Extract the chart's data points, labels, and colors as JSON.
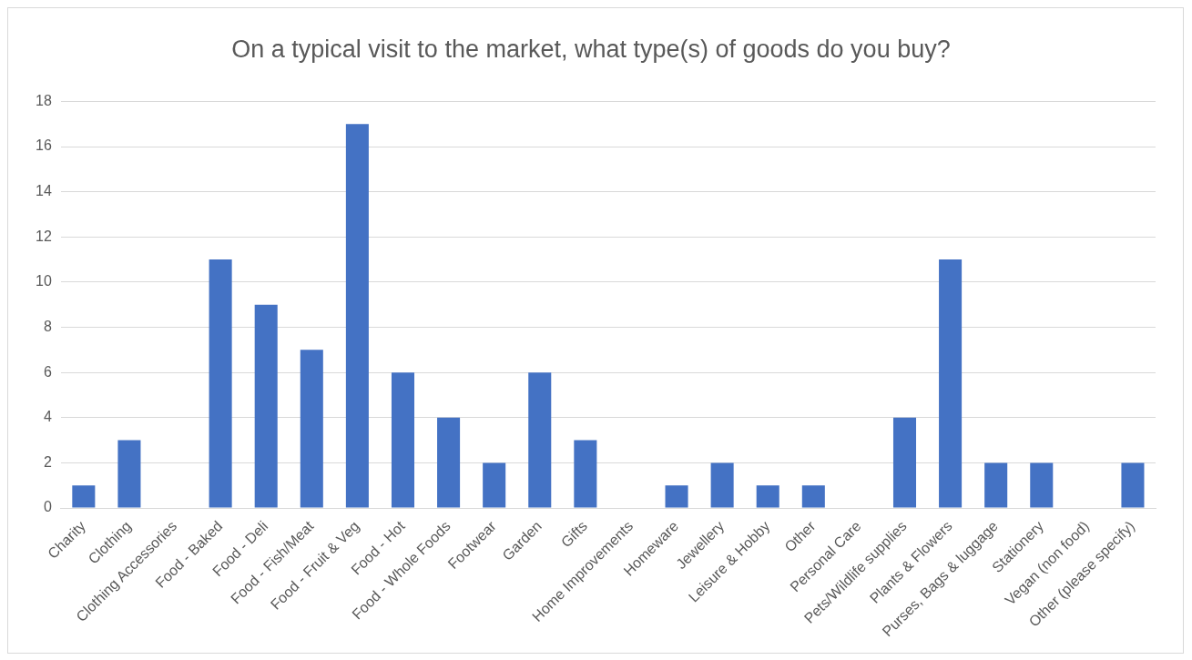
{
  "chart_data": {
    "type": "bar",
    "title": "On a typical visit to the market, what type(s) of goods do you buy?",
    "categories": [
      "Charity",
      "Clothing",
      "Clothing Accessories",
      "Food - Baked",
      "Food - Deli",
      "Food - Fish/Meat",
      "Food - Fruit & Veg",
      "Food - Hot",
      "Food - Whole Foods",
      "Footwear",
      "Garden",
      "Gifts",
      "Home Improvements",
      "Homeware",
      "Jewellery",
      "Leisure & Hobby",
      "Other",
      "Personal Care",
      "Pets/Wildlife supplies",
      "Plants & Flowers",
      "Purses, Bags & luggage",
      "Stationery",
      "Vegan (non food)",
      "Other (please specify)"
    ],
    "values": [
      1,
      3,
      0,
      11,
      9,
      7,
      17,
      6,
      4,
      2,
      6,
      3,
      0,
      1,
      2,
      1,
      1,
      0,
      4,
      11,
      2,
      2,
      0,
      2
    ],
    "color": "#4472c4",
    "ylim": [
      0,
      18
    ],
    "yticks": [
      0,
      2,
      4,
      6,
      8,
      10,
      12,
      14,
      16,
      18
    ],
    "grid": "y",
    "legend": false
  }
}
